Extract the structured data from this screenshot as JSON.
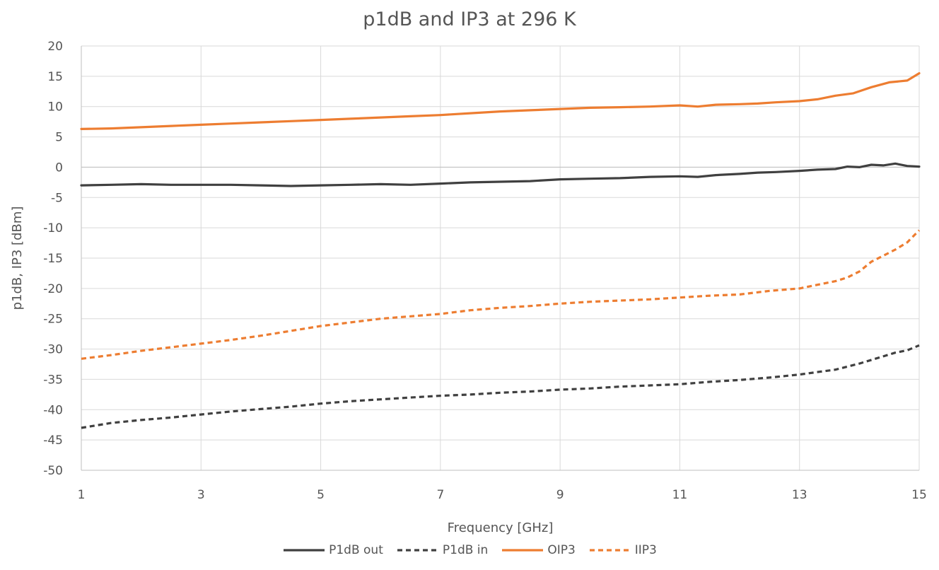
{
  "chart_data": {
    "type": "line",
    "title": "p1dB and IP3 at 296 K",
    "xlabel": "Frequency [GHz]",
    "ylabel": "p1dB, IP3 [dBm]",
    "xlim": [
      1,
      15
    ],
    "ylim": [
      -50,
      20
    ],
    "x_ticks": [
      "1",
      "3",
      "5",
      "7",
      "9",
      "11",
      "13",
      "15"
    ],
    "y_ticks": [
      "20",
      "15",
      "10",
      "5",
      "0",
      "-5",
      "-10",
      "-15",
      "-20",
      "-25",
      "-30",
      "-35",
      "-40",
      "-45",
      "-50"
    ],
    "grid": "vertical and horizontal major gridlines",
    "legend_position": "bottom",
    "series": [
      {
        "name": "P1dB out",
        "color": "#404040",
        "dash": "solid",
        "x": [
          1,
          1.5,
          2,
          2.5,
          3,
          3.5,
          4,
          4.5,
          5,
          5.5,
          6,
          6.5,
          7,
          7.5,
          8,
          8.5,
          9,
          9.5,
          10,
          10.5,
          11,
          11.3,
          11.6,
          12,
          12.3,
          12.6,
          13,
          13.3,
          13.6,
          13.8,
          14,
          14.2,
          14.4,
          14.6,
          14.8,
          15
        ],
        "y": [
          -3,
          -2.9,
          -2.8,
          -2.9,
          -2.9,
          -2.9,
          -3.0,
          -3.1,
          -3.0,
          -2.9,
          -2.8,
          -2.9,
          -2.7,
          -2.5,
          -2.4,
          -2.3,
          -2.0,
          -1.9,
          -1.8,
          -1.6,
          -1.5,
          -1.6,
          -1.3,
          -1.1,
          -0.9,
          -0.8,
          -0.6,
          -0.4,
          -0.3,
          0.1,
          0.0,
          0.4,
          0.3,
          0.6,
          0.2,
          0.1
        ]
      },
      {
        "name": "P1dB in",
        "color": "#404040",
        "dash": "dashed",
        "x": [
          1,
          1.5,
          2,
          2.5,
          3,
          3.5,
          4,
          4.5,
          5,
          5.5,
          6,
          6.5,
          7,
          7.5,
          8,
          8.5,
          9,
          9.5,
          10,
          10.5,
          11,
          11.5,
          12,
          12.5,
          13,
          13.3,
          13.6,
          14,
          14.3,
          14.6,
          14.8,
          15
        ],
        "y": [
          -43,
          -42.2,
          -41.7,
          -41.3,
          -40.8,
          -40.3,
          -39.9,
          -39.5,
          -39.0,
          -38.6,
          -38.3,
          -38.0,
          -37.7,
          -37.5,
          -37.2,
          -37.0,
          -36.7,
          -36.5,
          -36.2,
          -36.0,
          -35.8,
          -35.4,
          -35.1,
          -34.7,
          -34.2,
          -33.8,
          -33.4,
          -32.4,
          -31.5,
          -30.6,
          -30.2,
          -29.4
        ]
      },
      {
        "name": "OIP3",
        "color": "#ED7D31",
        "dash": "solid",
        "x": [
          1,
          1.5,
          2,
          2.5,
          3,
          3.5,
          4,
          4.5,
          5,
          5.5,
          6,
          6.5,
          7,
          7.5,
          8,
          8.5,
          9,
          9.5,
          10,
          10.5,
          11,
          11.3,
          11.6,
          12,
          12.3,
          12.6,
          13,
          13.3,
          13.6,
          13.9,
          14.2,
          14.5,
          14.8,
          15
        ],
        "y": [
          6.3,
          6.4,
          6.6,
          6.8,
          7.0,
          7.2,
          7.4,
          7.6,
          7.8,
          8.0,
          8.2,
          8.4,
          8.6,
          8.9,
          9.2,
          9.4,
          9.6,
          9.8,
          9.9,
          10.0,
          10.2,
          10.0,
          10.3,
          10.4,
          10.5,
          10.7,
          10.9,
          11.2,
          11.8,
          12.2,
          13.2,
          14.0,
          14.3,
          15.5
        ]
      },
      {
        "name": "IIP3",
        "color": "#ED7D31",
        "dash": "dashed",
        "x": [
          1,
          1.5,
          2,
          2.5,
          3,
          3.5,
          4,
          4.5,
          5,
          5.5,
          6,
          6.5,
          7,
          7.5,
          8,
          8.5,
          9,
          9.5,
          10,
          10.5,
          11,
          11.5,
          12,
          12.5,
          13,
          13.3,
          13.6,
          13.8,
          14,
          14.2,
          14.4,
          14.6,
          14.8,
          15
        ],
        "y": [
          -31.6,
          -31.0,
          -30.3,
          -29.7,
          -29.1,
          -28.5,
          -27.8,
          -27.0,
          -26.2,
          -25.6,
          -25.0,
          -24.6,
          -24.2,
          -23.6,
          -23.2,
          -22.9,
          -22.5,
          -22.2,
          -22.0,
          -21.8,
          -21.5,
          -21.2,
          -21.0,
          -20.4,
          -20.0,
          -19.4,
          -18.8,
          -18.2,
          -17.2,
          -15.6,
          -14.6,
          -13.6,
          -12.4,
          -10.4
        ]
      }
    ]
  }
}
